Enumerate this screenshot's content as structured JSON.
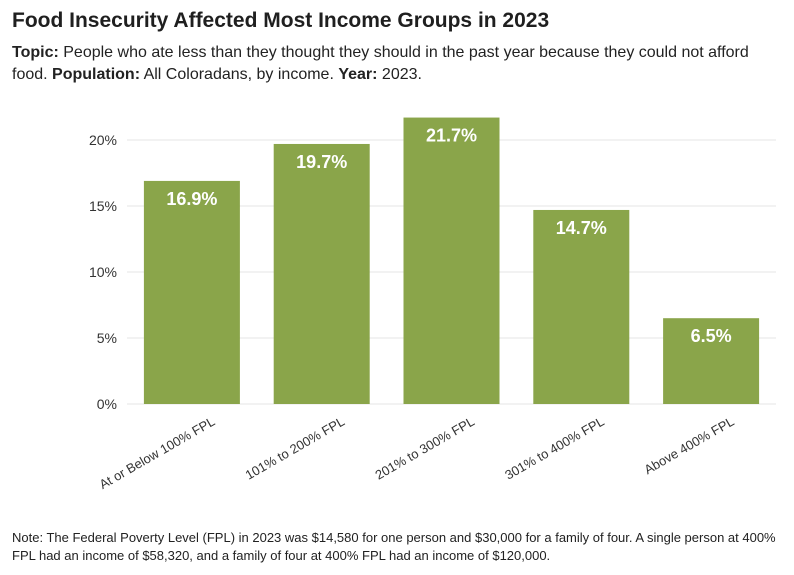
{
  "title": "Food Insecurity Affected Most Income Groups in 2023",
  "subtitle": {
    "topic_label": "Topic:",
    "topic_text": " People who ate less than they thought they should in the past year because they could not afford food. ",
    "population_label": "Population:",
    "population_text": " All Coloradans, by income. ",
    "year_label": "Year:",
    "year_text": " 2023."
  },
  "note": "Note: The Federal Poverty Level (FPL) in 2023 was $14,580 for one person and $30,000 for a family of four. A single person at 400% FPL had an income of $58,320, and a family of four at 400% FPL had an income of $120,000.",
  "colors": {
    "bar": "#8aa54a",
    "grid": "#e6e6e6",
    "axis_text": "#333333",
    "label": "#ffffff"
  },
  "chart_data": {
    "type": "bar",
    "categories": [
      "At or Below 100% FPL",
      "101% to 200% FPL",
      "201% to 300% FPL",
      "301% to 400% FPL",
      "Above 400% FPL"
    ],
    "values": [
      16.9,
      19.7,
      21.7,
      14.7,
      6.5
    ],
    "data_labels": [
      "16.9%",
      "19.7%",
      "21.7%",
      "14.7%",
      "6.5%"
    ],
    "ylim": [
      0,
      22
    ],
    "yticks": [
      0,
      5,
      10,
      15,
      20
    ],
    "ytick_labels": [
      "0%",
      "5%",
      "10%",
      "15%",
      "20%"
    ],
    "grid": true,
    "xlabel": "",
    "ylabel": ""
  }
}
